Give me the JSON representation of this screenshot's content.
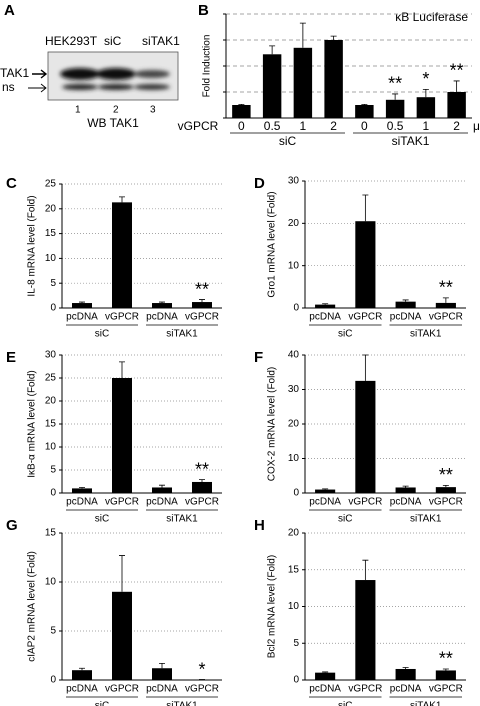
{
  "blot": {
    "panel": "A",
    "lanes": [
      "HEK293T",
      "siC",
      "siTAK1"
    ],
    "bands": [
      "TAK1",
      "ns"
    ],
    "lane_numbers": [
      "1",
      "2",
      "3"
    ],
    "caption": "WB TAK1"
  },
  "chart_data": [
    {
      "type": "bar",
      "panel": "B",
      "title": "κB Luciferase",
      "ylabel": "Fold Induction",
      "x_prefix": "vGPCR",
      "x_unit": "μg",
      "categories": [
        "0",
        "0.5",
        "1",
        "2",
        "0",
        "0.5",
        "1",
        "2"
      ],
      "groups": [
        "siC",
        "siTAK1"
      ],
      "values": [
        1,
        4.9,
        5.4,
        6.0,
        1,
        1.4,
        1.6,
        2.0
      ],
      "errors": [
        0.05,
        0.65,
        1.9,
        0.3,
        0.05,
        0.45,
        0.6,
        0.85
      ],
      "significance": [
        null,
        null,
        null,
        null,
        null,
        "**",
        "*",
        "**"
      ],
      "color": "#000000",
      "ylim": [
        0,
        8
      ],
      "yticks": [
        0,
        2,
        4,
        6,
        8
      ],
      "ytick_labels": false,
      "grid": "dashed"
    },
    {
      "type": "bar",
      "panel": "C",
      "ylabel": "IL-8 mRNA level (Fold)",
      "categories": [
        "pcDNA",
        "vGPCR",
        "pcDNA",
        "vGPCR"
      ],
      "groups": [
        "siC",
        "siTAK1"
      ],
      "values": [
        1,
        21.3,
        1,
        1.2
      ],
      "errors": [
        0.2,
        1.1,
        0.2,
        0.5
      ],
      "significance": [
        null,
        null,
        null,
        "**"
      ],
      "color": "#000000",
      "ylim": [
        0,
        25
      ],
      "yticks": [
        0,
        5,
        10,
        15,
        20,
        25
      ],
      "ytick_labels": true,
      "grid": "dotted"
    },
    {
      "type": "bar",
      "panel": "D",
      "ylabel": "Gro1 mRNA level (Fold)",
      "categories": [
        "pcDNA",
        "vGPCR",
        "pcDNA",
        "vGPCR"
      ],
      "groups": [
        "siC",
        "siTAK1"
      ],
      "values": [
        0.8,
        20.5,
        1.5,
        1.2
      ],
      "errors": [
        0.2,
        6.2,
        0.4,
        1.2
      ],
      "significance": [
        null,
        null,
        null,
        "**"
      ],
      "color": "#000000",
      "ylim": [
        0,
        30
      ],
      "yticks": [
        0,
        10,
        20,
        30
      ],
      "ytick_labels": true,
      "grid": "dotted"
    },
    {
      "type": "bar",
      "panel": "E",
      "ylabel": "IκB-α mRNA level (Fold)",
      "categories": [
        "pcDNA",
        "vGPCR",
        "pcDNA",
        "vGPCR"
      ],
      "groups": [
        "siC",
        "siTAK1"
      ],
      "values": [
        1,
        25,
        1.2,
        2.4
      ],
      "errors": [
        0.2,
        3.5,
        0.5,
        0.5
      ],
      "significance": [
        null,
        null,
        null,
        "**"
      ],
      "color": "#000000",
      "ylim": [
        0,
        30
      ],
      "yticks": [
        0,
        5,
        10,
        15,
        20,
        25,
        30
      ],
      "ytick_labels": true,
      "grid": "dotted"
    },
    {
      "type": "bar",
      "panel": "F",
      "ylabel": "COX-2 mRNA level (Fold)",
      "categories": [
        "pcDNA",
        "vGPCR",
        "pcDNA",
        "vGPCR"
      ],
      "groups": [
        "siC",
        "siTAK1"
      ],
      "values": [
        1,
        32.5,
        1.6,
        1.7
      ],
      "errors": [
        0.2,
        7.5,
        0.4,
        0.5
      ],
      "significance": [
        null,
        null,
        null,
        "**"
      ],
      "color": "#000000",
      "ylim": [
        0,
        40
      ],
      "yticks": [
        0,
        10,
        20,
        30,
        40
      ],
      "ytick_labels": true,
      "grid": "dotted"
    },
    {
      "type": "bar",
      "panel": "G",
      "ylabel": "cIAP2 mRNA level (Fold)",
      "categories": [
        "pcDNA",
        "vGPCR",
        "pcDNA",
        "vGPCR"
      ],
      "groups": [
        "siC",
        "siTAK1"
      ],
      "values": [
        1,
        9,
        1.2,
        0.05
      ],
      "errors": [
        0.2,
        3.7,
        0.5,
        0
      ],
      "significance": [
        null,
        null,
        null,
        "*"
      ],
      "color": "#000000",
      "ylim": [
        0,
        15
      ],
      "yticks": [
        0,
        5,
        10,
        15
      ],
      "ytick_labels": true,
      "grid": "dotted"
    },
    {
      "type": "bar",
      "panel": "H",
      "ylabel": "Bcl2 mRNA level (Fold)",
      "categories": [
        "pcDNA",
        "vGPCR",
        "pcDNA",
        "vGPCR"
      ],
      "groups": [
        "siC",
        "siTAK1"
      ],
      "values": [
        1,
        13.6,
        1.5,
        1.3
      ],
      "errors": [
        0.1,
        2.7,
        0.2,
        0.2
      ],
      "significance": [
        null,
        null,
        null,
        "**"
      ],
      "color": "#000000",
      "ylim": [
        0,
        20
      ],
      "yticks": [
        0,
        5,
        10,
        15,
        20
      ],
      "ytick_labels": true,
      "grid": "dotted"
    }
  ]
}
